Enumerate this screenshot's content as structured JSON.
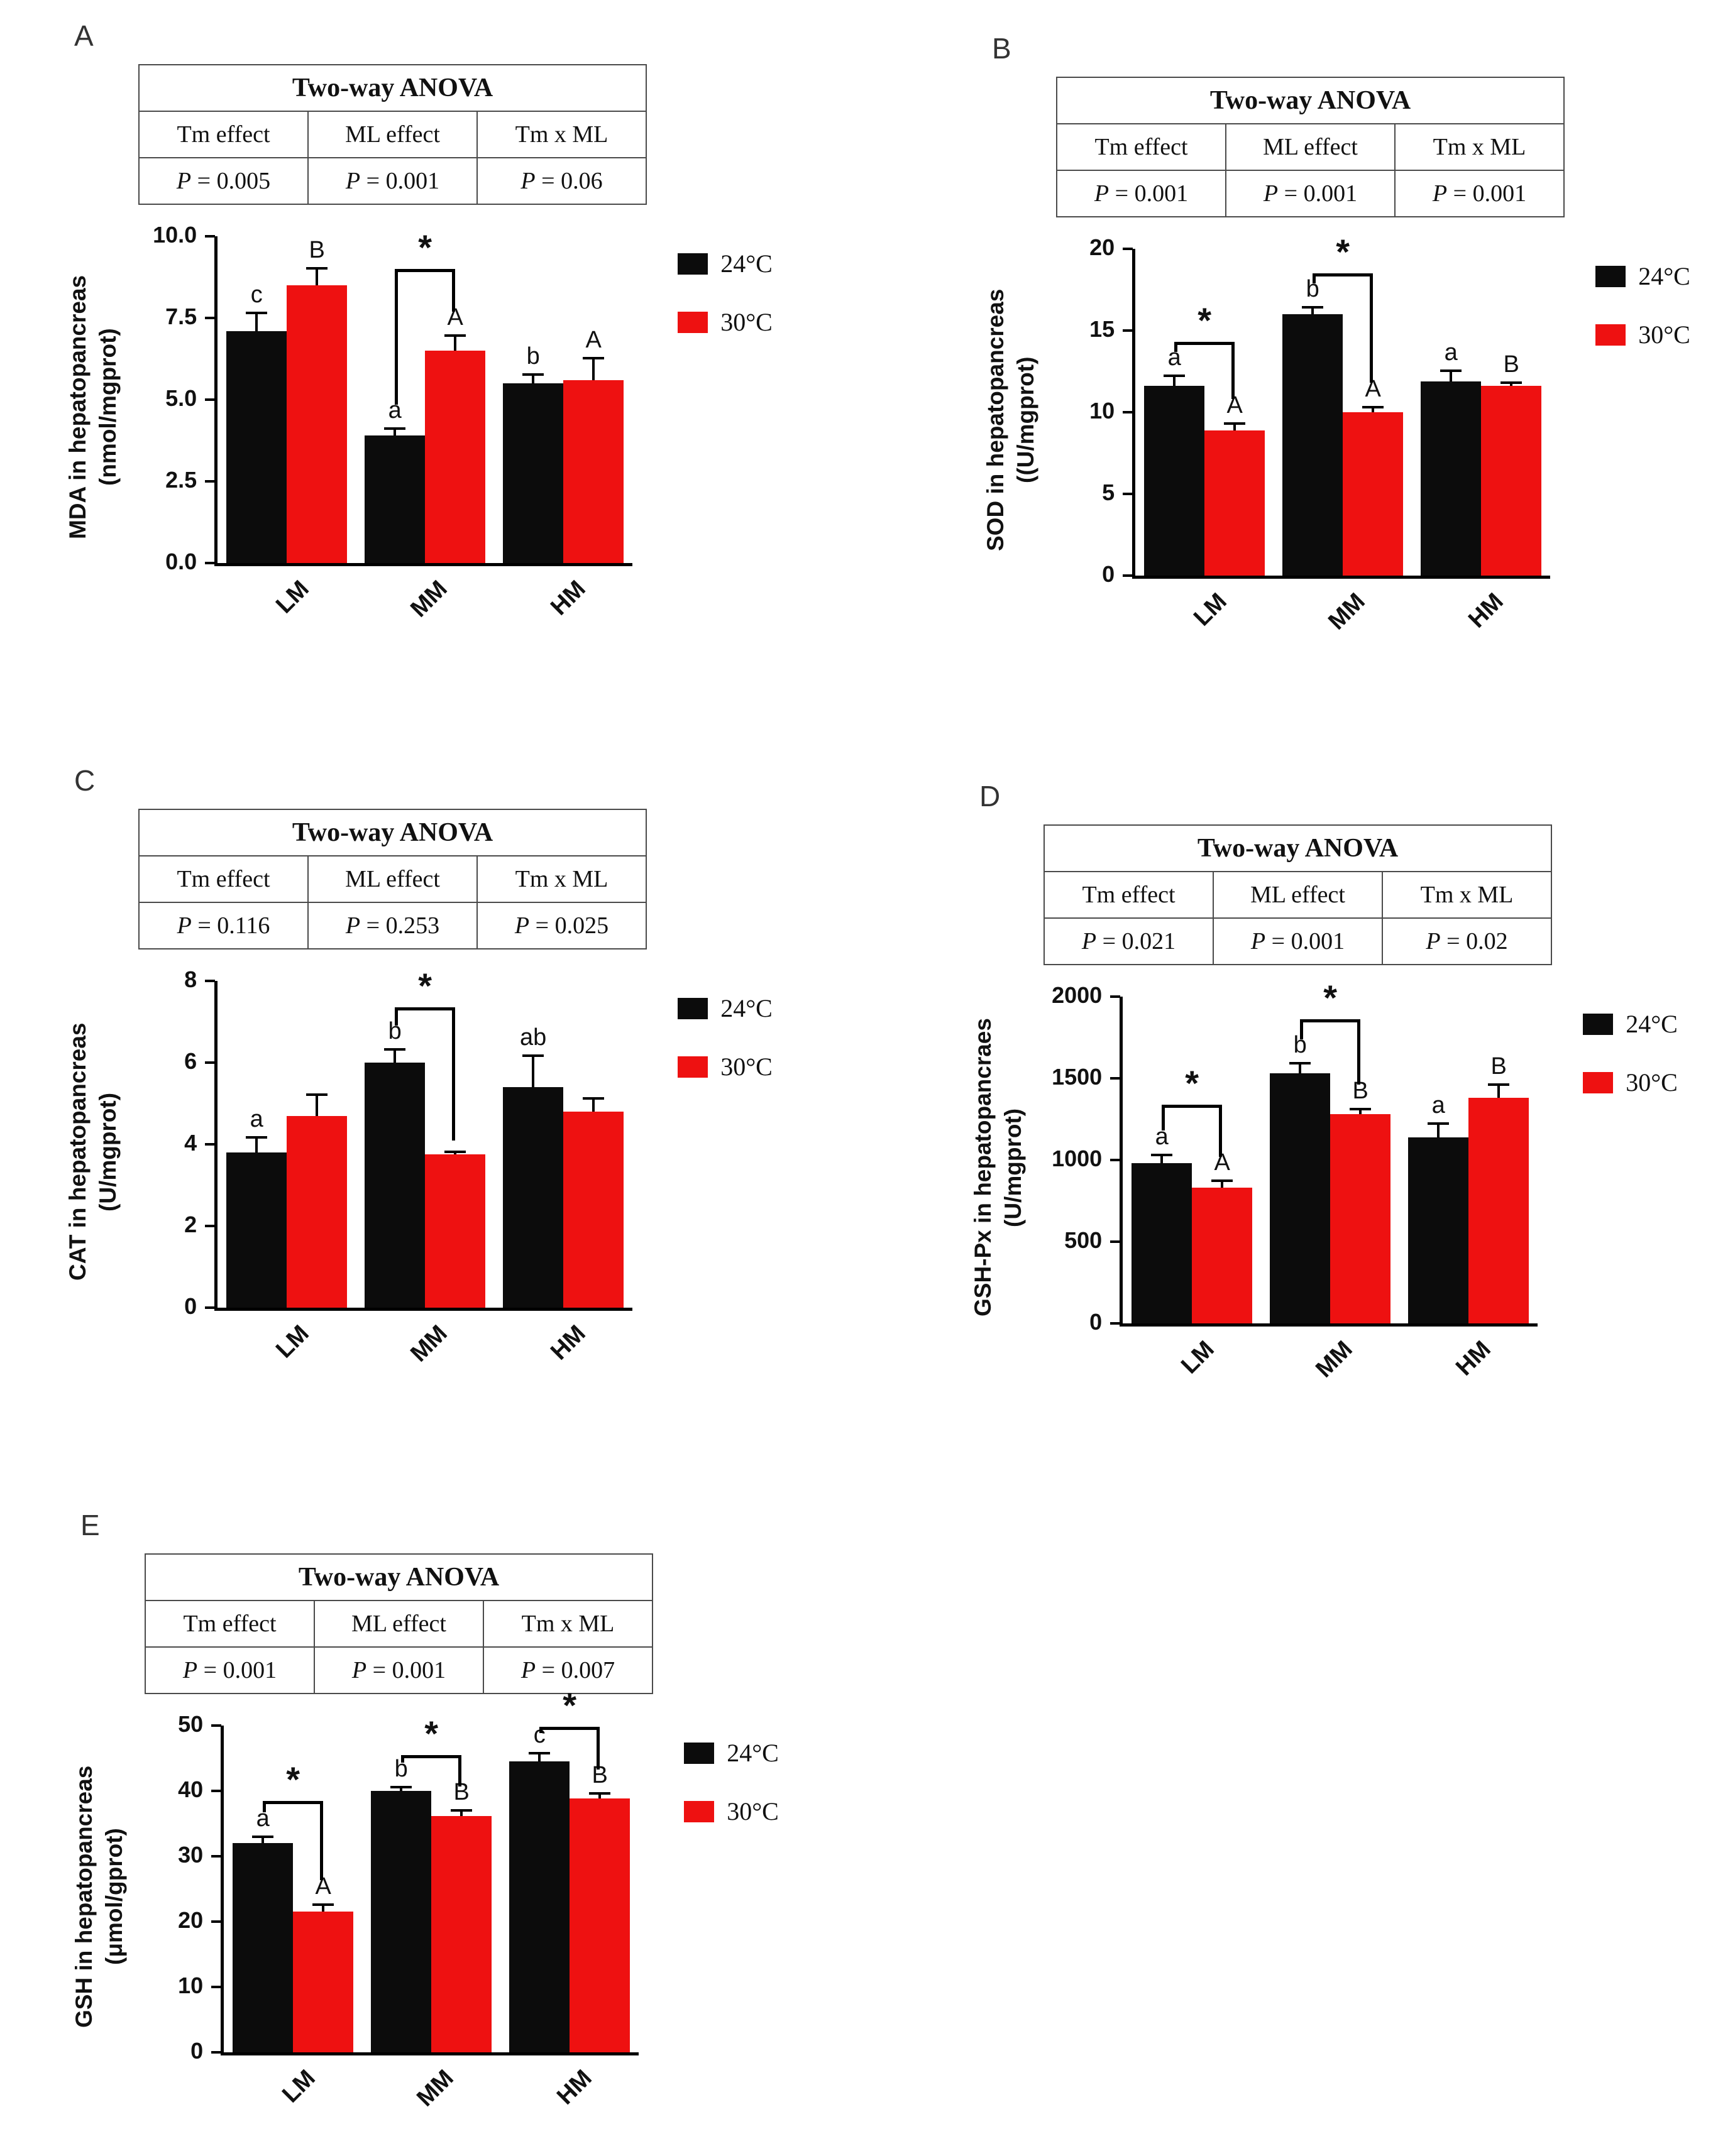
{
  "page": {
    "background": "#ffffff"
  },
  "legend": {
    "items": [
      {
        "label": "24°C",
        "color": "#0c0c0c"
      },
      {
        "label": "30°C",
        "color": "#ee1111"
      }
    ]
  },
  "chart_data": [
    {
      "panel": "A",
      "type": "bar",
      "ylabel_line1": "MDA in hepatopancreas",
      "ylabel_line2": "(nmol/mgprot)",
      "xlabel": "",
      "ylim": [
        0,
        10
      ],
      "yticks": [
        "0.0",
        "2.5",
        "5.0",
        "7.5",
        "10.0"
      ],
      "categories": [
        "LM",
        "MM",
        "HM"
      ],
      "series": [
        {
          "name": "24°C",
          "color": "#0c0c0c",
          "values": [
            7.1,
            3.9,
            5.5
          ],
          "errors": [
            0.6,
            0.25,
            0.3
          ],
          "letters": [
            "c",
            "a",
            "b"
          ]
        },
        {
          "name": "30°C",
          "color": "#ee1111",
          "values": [
            8.5,
            6.5,
            5.6
          ],
          "errors": [
            0.55,
            0.5,
            0.7
          ],
          "letters": [
            "B",
            "A",
            "A"
          ]
        }
      ],
      "anova": {
        "title": "Two-way ANOVA",
        "columns": [
          "Tm effect",
          "ML effect",
          "Tm x ML"
        ],
        "p_label": "P",
        "p_values": [
          "= 0.005",
          "= 0.001",
          "= 0.06"
        ]
      },
      "brackets": [
        {
          "group": 1,
          "top": 9.0,
          "star": "*"
        }
      ]
    },
    {
      "panel": "B",
      "type": "bar",
      "ylabel_line1": "SOD in hepatopancreas",
      "ylabel_line2": "((U/mgprot)",
      "xlabel": "",
      "ylim": [
        0,
        20
      ],
      "yticks": [
        "0",
        "5",
        "10",
        "15",
        "20"
      ],
      "categories": [
        "LM",
        "MM",
        "HM"
      ],
      "series": [
        {
          "name": "24°C",
          "color": "#0c0c0c",
          "values": [
            11.6,
            16.0,
            11.9
          ],
          "errors": [
            0.7,
            0.5,
            0.7
          ],
          "letters": [
            "a",
            "b",
            "a"
          ]
        },
        {
          "name": "30°C",
          "color": "#ee1111",
          "values": [
            8.9,
            10.0,
            11.6
          ],
          "errors": [
            0.5,
            0.4,
            0.3
          ],
          "letters": [
            "A",
            "A",
            "B"
          ]
        }
      ],
      "anova": {
        "title": "Two-way ANOVA",
        "columns": [
          "Tm effect",
          "ML effect",
          "Tm x ML"
        ],
        "p_label": "P",
        "p_values": [
          "= 0.001",
          "= 0.001",
          "= 0.001"
        ]
      },
      "brackets": [
        {
          "group": 0,
          "top": 14.3,
          "star": "*"
        },
        {
          "group": 1,
          "top": 18.5,
          "star": "*"
        }
      ]
    },
    {
      "panel": "C",
      "type": "bar",
      "ylabel_line1": "CAT in hepatopancreas",
      "ylabel_line2": "(U/mgprot)",
      "xlabel": "",
      "ylim": [
        0,
        8
      ],
      "yticks": [
        "0",
        "2",
        "4",
        "6",
        "8"
      ],
      "categories": [
        "LM",
        "MM",
        "HM"
      ],
      "series": [
        {
          "name": "24°C",
          "color": "#0c0c0c",
          "values": [
            3.8,
            6.0,
            5.4
          ],
          "errors": [
            0.4,
            0.35,
            0.8
          ],
          "letters": [
            "a",
            "b",
            "ab"
          ]
        },
        {
          "name": "30°C",
          "color": "#ee1111",
          "values": [
            4.7,
            3.75,
            4.8
          ],
          "errors": [
            0.55,
            0.1,
            0.35
          ],
          "letters": [
            "",
            "",
            ""
          ]
        }
      ],
      "anova": {
        "title": "Two-way ANOVA",
        "columns": [
          "Tm effect",
          "ML effect",
          "Tm x ML"
        ],
        "p_label": "P",
        "p_values": [
          "= 0.116",
          "= 0.253",
          "= 0.025"
        ]
      },
      "brackets": [
        {
          "group": 1,
          "top": 7.35,
          "star": "*"
        }
      ]
    },
    {
      "panel": "D",
      "type": "bar",
      "ylabel_line1": "GSH-Px in hepatopancraes",
      "ylabel_line2": "(U/mgprot)",
      "xlabel": "",
      "ylim": [
        0,
        2000
      ],
      "yticks": [
        "0",
        "500",
        "1000",
        "1500",
        "2000"
      ],
      "categories": [
        "LM",
        "MM",
        "HM"
      ],
      "series": [
        {
          "name": "24°C",
          "color": "#0c0c0c",
          "values": [
            980,
            1530,
            1140
          ],
          "errors": [
            60,
            70,
            90
          ],
          "letters": [
            "a",
            "b",
            "a"
          ]
        },
        {
          "name": "30°C",
          "color": "#ee1111",
          "values": [
            830,
            1280,
            1380
          ],
          "errors": [
            50,
            40,
            90
          ],
          "letters": [
            "A",
            "B",
            "B"
          ]
        }
      ],
      "anova": {
        "title": "Two-way ANOVA",
        "columns": [
          "Tm effect",
          "ML effect",
          "Tm x ML"
        ],
        "p_label": "P",
        "p_values": [
          "= 0.021",
          "= 0.001",
          "= 0.02"
        ]
      },
      "brackets": [
        {
          "group": 0,
          "top": 1340,
          "star": "*"
        },
        {
          "group": 1,
          "top": 1860,
          "star": "*"
        }
      ]
    },
    {
      "panel": "E",
      "type": "bar",
      "ylabel_line1": "GSH in hepatopancreas",
      "ylabel_line2": "(μmol/gprot)",
      "xlabel": "",
      "ylim": [
        0,
        50
      ],
      "yticks": [
        "0",
        "10",
        "20",
        "30",
        "40",
        "50"
      ],
      "categories": [
        "LM",
        "MM",
        "HM"
      ],
      "series": [
        {
          "name": "24°C",
          "color": "#0c0c0c",
          "values": [
            32,
            40,
            44.5
          ],
          "errors": [
            1.2,
            0.8,
            1.5
          ],
          "letters": [
            "a",
            "b",
            "c"
          ]
        },
        {
          "name": "30°C",
          "color": "#ee1111",
          "values": [
            21.5,
            36.2,
            38.8
          ],
          "errors": [
            1.3,
            1.0,
            1.0
          ],
          "letters": [
            "A",
            "B",
            "B"
          ]
        }
      ],
      "anova": {
        "title": "Two-way ANOVA",
        "columns": [
          "Tm effect",
          "ML effect",
          "Tm x ML"
        ],
        "p_label": "P",
        "p_values": [
          "= 0.001",
          "= 0.001",
          "= 0.007"
        ]
      },
      "brackets": [
        {
          "group": 0,
          "top": 38.5,
          "star": "*"
        },
        {
          "group": 1,
          "top": 45.5,
          "star": "*"
        },
        {
          "group": 2,
          "top": 49.8,
          "star": "*"
        }
      ]
    }
  ]
}
